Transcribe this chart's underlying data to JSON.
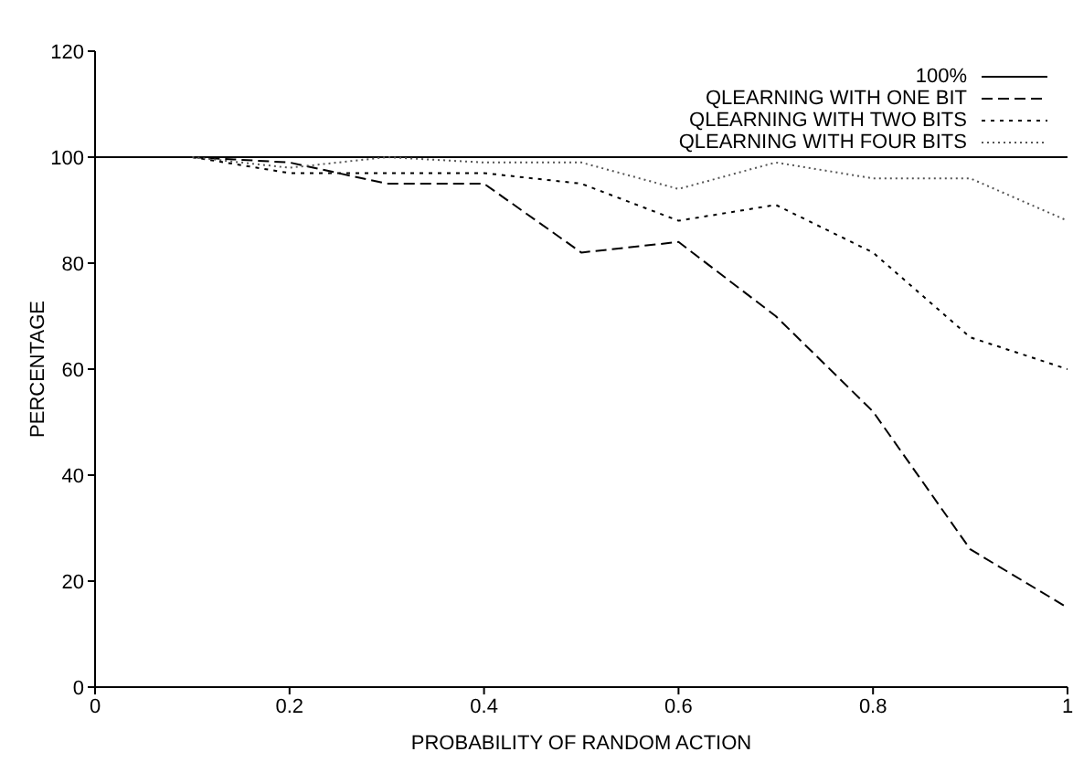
{
  "chart_data": {
    "type": "line",
    "xlabel": "PROBABILITY OF RANDOM ACTION",
    "ylabel": "PERCENTAGE",
    "xlim": [
      0,
      1
    ],
    "xticks": [
      0,
      0.2,
      0.4,
      0.6,
      0.8,
      1
    ],
    "ylim": [
      0,
      120
    ],
    "yticks": [
      0,
      20,
      40,
      60,
      80,
      100,
      120
    ],
    "grid": false,
    "legend": "top right",
    "marker": "none",
    "series": [
      {
        "name": "100%",
        "color": "#000000",
        "line_style": "solid",
        "x": [
          0,
          1
        ],
        "values": [
          100,
          100
        ]
      },
      {
        "name": "QLEARNING WITH ONE BIT",
        "color": "#000000",
        "line_style": "dashed",
        "x": [
          0.1,
          0.2,
          0.3,
          0.4,
          0.5,
          0.6,
          0.7,
          0.8,
          0.9,
          1
        ],
        "values": [
          100,
          99,
          95,
          95,
          82,
          84,
          70,
          52,
          26,
          15
        ]
      },
      {
        "name": "QLEARNING WITH TWO BITS",
        "color": "#000000",
        "line_style": "dotted",
        "x": [
          0.1,
          0.2,
          0.3,
          0.4,
          0.5,
          0.6,
          0.7,
          0.8,
          0.9,
          1
        ],
        "values": [
          100,
          97,
          97,
          97,
          95,
          88,
          91,
          82,
          66,
          60
        ]
      },
      {
        "name": "QLEARNING WITH FOUR BITS",
        "color": "#555555",
        "line_style": "dotted",
        "x": [
          0.1,
          0.2,
          0.3,
          0.4,
          0.5,
          0.6,
          0.7,
          0.8,
          0.9,
          1
        ],
        "values": [
          100,
          98,
          100,
          99,
          99,
          94,
          99,
          96,
          96,
          88
        ]
      }
    ]
  }
}
